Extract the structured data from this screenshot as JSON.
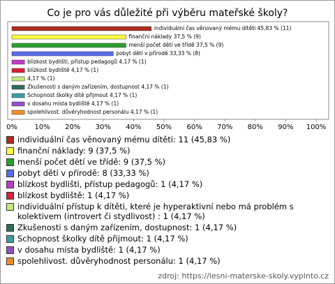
{
  "chart_data": {
    "type": "bar",
    "orientation": "horizontal",
    "title": "Co je pro vás důležité při výběru mateřské školy?",
    "values": [
      45.83,
      37.5,
      37.5,
      33.33,
      4.17,
      4.17,
      4.17,
      4.17,
      4.17,
      4.17,
      4.17
    ],
    "value_labels": [
      "individuální čas věnovaný mému dítěti 45,83 % (11)",
      "finanční náklady 37,5 % (9)",
      "menší počet dětí ve třídě 37,5 % (9)",
      "pobyt dětí v přírodě 33,33 % (8)",
      "blízkost bydlišti, přístup pedagogů 4,17 % (1)",
      "blízkost bydliště 4,17 % (1)",
      "4,17 % (1)",
      "Zkušenosti s daným zařízením, dostupnost 4,17 % (1)",
      "Schopnost školky dítě přijmout 4,17 % (1)",
      "v dosahu místa bydliště 4,17 % (1)",
      "spolehlivost. důvěryhodnost  personálu 4,17 % (1)"
    ],
    "legend_labels": [
      "individuální čas věnovaný mému dítěti: 11 (45,83 %)",
      "finanční náklady: 9 (37,5 %)",
      "menší počet dětí ve třídě: 9 (37,5 %)",
      "pobyt dětí v přírodě: 8 (33,33 %)",
      "blízkost bydlišti, přístup pedagogů: 1 (4,17 %)",
      "blízkost bydliště: 1 (4,17 %)",
      "individuální přístup k dítěti, které je hyperaktivní nebo má problém s kolektivem (introvert či stydlivost) : 1 (4,17 %)",
      "Zkušenosti s daným zařízením, dostupnost: 1 (4,17 %)",
      "Schopnost školky dítě přijmout: 1 (4,17 %)",
      "v dosahu místa bydliště: 1 (4,17 %)",
      "spolehlivost. důvěryhodnost  personálu: 1 (4,17 %)"
    ],
    "colors": [
      "#b22a1e",
      "#ffff40",
      "#2ca02c",
      "#5b6cf0",
      "#c03cc8",
      "#d8203a",
      "#c0e880",
      "#2e6e5e",
      "#3aa0a0",
      "#9450c8",
      "#f08c28"
    ],
    "xlim": [
      0,
      100
    ],
    "xticks": [
      {
        "value": 0,
        "label": "0%"
      },
      {
        "value": 10,
        "label": "10%"
      },
      {
        "value": 20,
        "label": "20%"
      },
      {
        "value": 30,
        "label": "30%"
      },
      {
        "value": 40,
        "label": "40%"
      },
      {
        "value": 50,
        "label": "50%"
      },
      {
        "value": 60,
        "label": "60%"
      },
      {
        "value": 70,
        "label": "70%"
      },
      {
        "value": 80,
        "label": "80%"
      },
      {
        "value": 90,
        "label": "90%"
      },
      {
        "value": 100,
        "label": "100%"
      }
    ],
    "source": "zdroj: https://lesni-materske-skoly.vyplnto.cz"
  }
}
